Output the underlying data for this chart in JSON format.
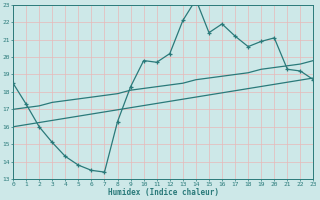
{
  "title": "",
  "xlabel": "Humidex (Indice chaleur)",
  "ylabel": "",
  "bg_color": "#cde8e8",
  "grid_color": "#b8d8d8",
  "line_color": "#2a7a7a",
  "xlim": [
    0,
    23
  ],
  "ylim": [
    13,
    23
  ],
  "xticks": [
    0,
    1,
    2,
    3,
    4,
    5,
    6,
    7,
    8,
    9,
    10,
    11,
    12,
    13,
    14,
    15,
    16,
    17,
    18,
    19,
    20,
    21,
    22,
    23
  ],
  "yticks": [
    13,
    14,
    15,
    16,
    17,
    18,
    19,
    20,
    21,
    22,
    23
  ],
  "line1_x": [
    0,
    1,
    2,
    3,
    4,
    5,
    6,
    7,
    8,
    9,
    10,
    11,
    12,
    13,
    14,
    15,
    16,
    17,
    18,
    19,
    20,
    21,
    22,
    23
  ],
  "line1_y": [
    18.5,
    17.3,
    16.0,
    15.1,
    14.3,
    13.8,
    13.5,
    13.4,
    16.3,
    18.3,
    19.8,
    19.7,
    20.2,
    22.1,
    23.3,
    21.4,
    21.9,
    21.2,
    20.6,
    20.9,
    21.1,
    19.3,
    19.2,
    18.7
  ],
  "line2_x": [
    0,
    1,
    2,
    3,
    4,
    5,
    6,
    7,
    8,
    9,
    10,
    11,
    12,
    13,
    14,
    15,
    16,
    17,
    18,
    19,
    20,
    21,
    22,
    23
  ],
  "line2_y": [
    17.0,
    17.1,
    17.2,
    17.4,
    17.5,
    17.6,
    17.7,
    17.8,
    17.9,
    18.1,
    18.2,
    18.3,
    18.4,
    18.5,
    18.7,
    18.8,
    18.9,
    19.0,
    19.1,
    19.3,
    19.4,
    19.5,
    19.6,
    19.8
  ],
  "line3_x": [
    0,
    23
  ],
  "line3_y": [
    16.0,
    18.8
  ],
  "marker_size": 3.5,
  "line_width": 0.9
}
